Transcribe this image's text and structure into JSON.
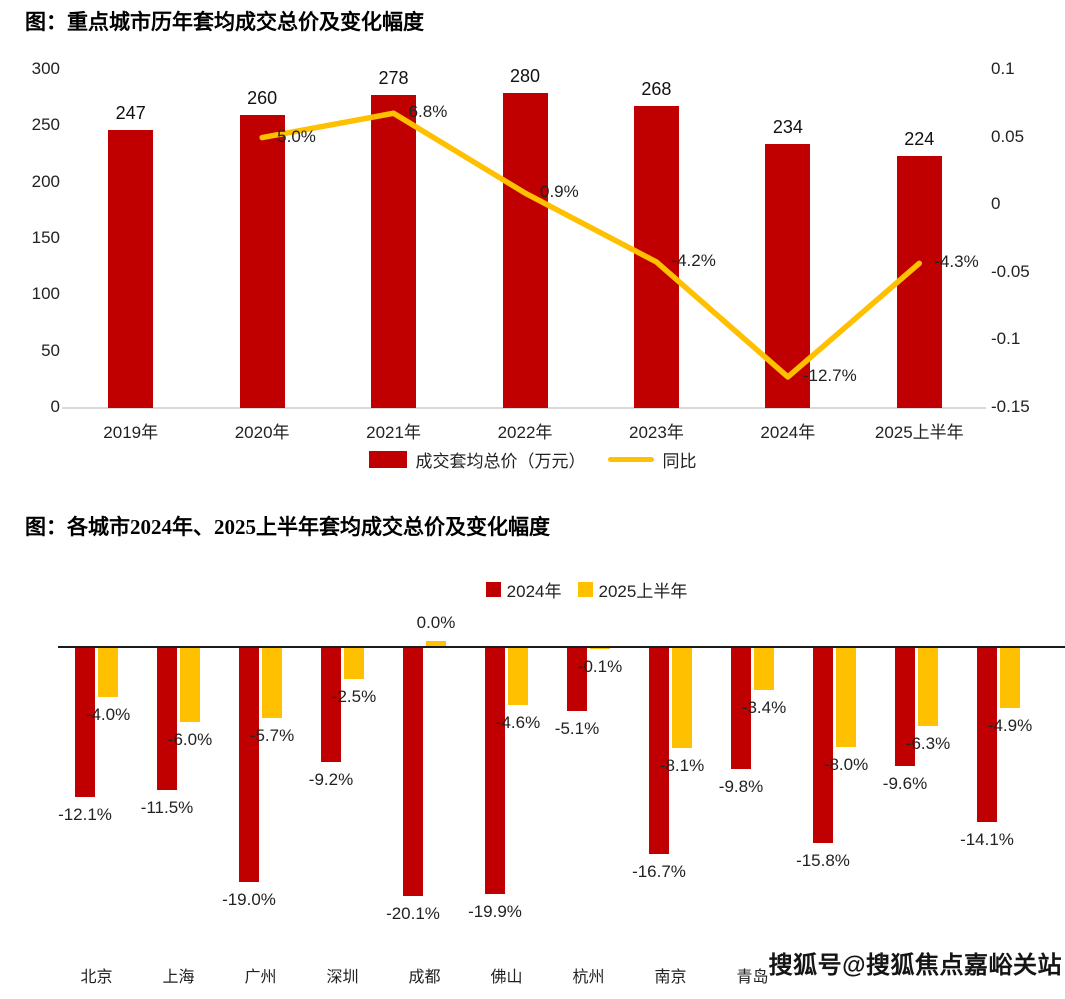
{
  "watermark": "搜狐号@搜狐焦点嘉峪关站",
  "colors": {
    "bar_red": "#C00000",
    "line_gold": "#FFC000",
    "axis_gray": "#d9d9d9",
    "baseline_dark": "#1a1a1a"
  },
  "chart_data": [
    {
      "type": "bar+line",
      "title": "图：重点城市历年套均成交总价及变化幅度",
      "categories": [
        "2019年",
        "2020年",
        "2021年",
        "2022年",
        "2023年",
        "2024年",
        "2025上半年"
      ],
      "series": [
        {
          "name": "成交套均总价（万元）",
          "kind": "bar",
          "axis": "left",
          "color": "#C00000",
          "values": [
            247,
            260,
            278,
            280,
            268,
            234,
            224
          ]
        },
        {
          "name": "同比",
          "kind": "line",
          "axis": "right",
          "color": "#FFC000",
          "values": [
            null,
            0.05,
            0.068,
            0.009,
            -0.042,
            -0.127,
            -0.043
          ],
          "point_labels": [
            "",
            "5.0%",
            "6.8%",
            "0.9%",
            "-4.2%",
            "-12.7%",
            "-4.3%"
          ]
        }
      ],
      "left_axis": {
        "ticks": [
          "300",
          "250",
          "200",
          "150",
          "100",
          "50",
          "0"
        ],
        "lim": [
          0,
          300
        ]
      },
      "right_axis": {
        "ticks": [
          "0.1",
          "0.05",
          "0",
          "-0.05",
          "-0.1",
          "-0.15"
        ],
        "lim": [
          -0.15,
          0.1
        ]
      },
      "legend": [
        {
          "label": "成交套均总价（万元）",
          "color": "#C00000",
          "shape": "rect"
        },
        {
          "label": "同比",
          "color": "#FFC000",
          "shape": "line"
        }
      ],
      "grid": false,
      "legend_position": "bottom-center"
    },
    {
      "type": "bar",
      "title": "图：各城市2024年、2025上半年套均成交总价及变化幅度",
      "categories": [
        "北京",
        "上海",
        "广州",
        "深圳",
        "成都",
        "佛山",
        "杭州",
        "南京",
        "青岛",
        "",
        "",
        ""
      ],
      "series": [
        {
          "name": "2024年",
          "color": "#C00000",
          "values": [
            -12.1,
            -11.5,
            -19.0,
            -9.2,
            -20.1,
            -19.9,
            -5.1,
            -16.7,
            -9.8,
            -15.8,
            -9.6,
            -14.1
          ],
          "labels": [
            "-12.1%",
            "-11.5%",
            "-19.0%",
            "-9.2%",
            "-20.1%",
            "-19.9%",
            "-5.1%",
            "-16.7%",
            "-9.8%",
            "-15.8%",
            "-9.6%",
            "-14.1%"
          ]
        },
        {
          "name": "2025上半年",
          "color": "#FFC000",
          "values": [
            -4.0,
            -6.0,
            -5.7,
            -2.5,
            0.0,
            -4.6,
            -0.1,
            -8.1,
            -3.4,
            -8.0,
            -6.3,
            -4.9
          ],
          "labels": [
            "-4.0%",
            "-6.0%",
            "-5.7%",
            "-2.5%",
            "0.0%",
            "-4.6%",
            "-0.1%",
            "-8.1%",
            "-3.4%",
            "-8.0%",
            "-6.3%",
            "-4.9%"
          ]
        }
      ],
      "legend": [
        {
          "label": "2024年",
          "color": "#C00000",
          "shape": "rect"
        },
        {
          "label": "2025上半年",
          "color": "#FFC000",
          "shape": "rect"
        }
      ],
      "ylim": [
        -22,
        1
      ],
      "grid": false,
      "legend_position": "top-center"
    }
  ]
}
